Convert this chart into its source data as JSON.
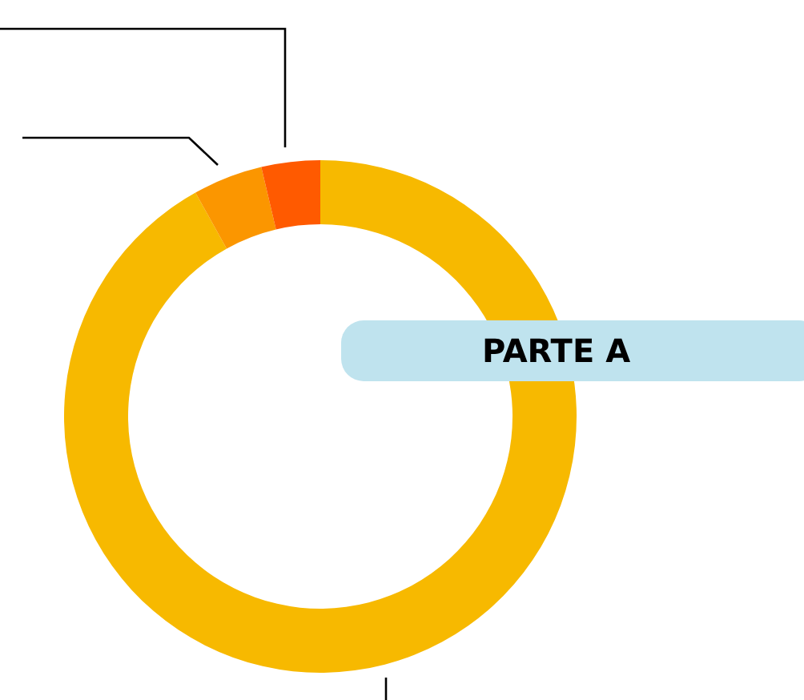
{
  "chart_data": {
    "type": "donut",
    "categories": [
      null,
      null,
      null
    ],
    "values": [
      91.9,
      4.4,
      3.7
    ],
    "colors": [
      "#f7b900",
      "#fb9600",
      "#ff5a00"
    ],
    "annotations": [
      "PARTE A"
    ]
  }
}
